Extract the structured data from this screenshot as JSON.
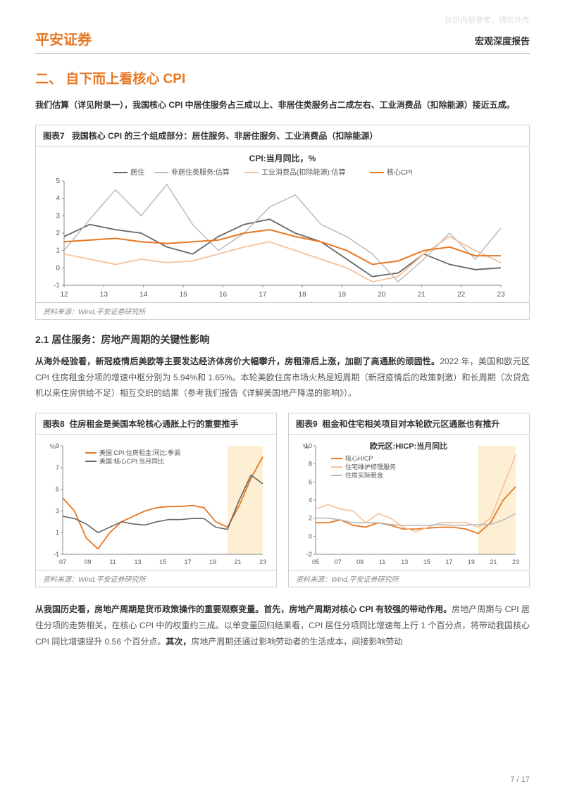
{
  "watermark": "仅供内部参考，请勿外传",
  "brand": "平安证券",
  "doc_type": "宏观深度报告",
  "section_title": "二、 自下而上看核心 CPI",
  "intro": {
    "bold1": "我们估算（详见附录一），我国核心 CPI 中居住服务占三成以上、非居住类服务占二成左右、工业消费品（扣除能源）接近五成。"
  },
  "chart7": {
    "label": "图表7",
    "title": "我国核心 CPI 的三个组成部分：居住服务、非居住服务、工业消费品（扣除能源）",
    "inner_title": "CPI:当月同比，%",
    "source": "资料来源：Wind,平安证券研究所",
    "legend": [
      "居住",
      "非居住类服务:估算",
      "工业消费品(扣除能源):估算",
      "核心CPI"
    ],
    "colors": {
      "housing": "#666666",
      "non_housing_svc": "#bbbbbb",
      "industrial": "#f5c19a",
      "core_cpi": "#e87722",
      "grid": "#e0e0e0",
      "axis": "#888888",
      "text": "#555555",
      "bg": "#ffffff"
    },
    "ymin": -1,
    "ymax": 5,
    "ytick_step": 1,
    "x_labels": [
      "12",
      "13",
      "14",
      "15",
      "16",
      "17",
      "18",
      "19",
      "20",
      "21",
      "22",
      "23"
    ],
    "housing": [
      1.8,
      2.5,
      2.2,
      2.0,
      1.2,
      0.8,
      1.8,
      2.5,
      2.8,
      2.0,
      1.5,
      0.5,
      -0.5,
      -0.3,
      0.8,
      0.2,
      -0.1,
      0.0
    ],
    "non_housing": [
      1.0,
      2.8,
      4.5,
      3.0,
      4.8,
      2.5,
      1.0,
      2.0,
      3.5,
      4.2,
      2.5,
      1.8,
      0.8,
      -0.8,
      0.5,
      2.0,
      0.5,
      2.3
    ],
    "industrial": [
      0.8,
      0.5,
      0.2,
      0.5,
      0.3,
      0.4,
      0.8,
      1.2,
      1.5,
      1.0,
      0.5,
      0.0,
      -0.8,
      -0.5,
      0.8,
      1.8,
      1.0,
      0.3
    ],
    "core_cpi": [
      1.5,
      1.6,
      1.7,
      1.5,
      1.4,
      1.5,
      1.6,
      2.0,
      2.2,
      1.8,
      1.5,
      1.0,
      0.2,
      0.4,
      1.0,
      1.2,
      0.7,
      0.7
    ],
    "n_points": 18,
    "label_fontsize": 10
  },
  "subsection_2_1": "2.1 居住服务：房地产周期的关键性影响",
  "para_2_1": {
    "bold": "从海外经验看，新冠疫情后美欧等主要发达经济体房价大幅攀升，房租滞后上涨，加剧了高通胀的顽固性。",
    "rest": "2022 年，美国和欧元区 CPI 住房租金分项的增速中枢分别为 5.94%和 1.65%。本轮美欧住房市场火热是短周期（新冠疫情后的政策刺激）和长周期（次贷危机以来住房供给不足）相互交织的结果（参考我们报告《详解美国地产降温的影响》）。"
  },
  "chart8": {
    "label": "图表8",
    "title": "住房租金是美国本轮核心通胀上行的重要推手",
    "source": "资料来源：Wind,平安证券研究所",
    "legend": [
      "美国:CPI:住房租金:同比:季调",
      "美国:核心CPI:当月同比"
    ],
    "ylabel": "%",
    "colors": {
      "rent": "#e87722",
      "core": "#666666",
      "hl": "#fcefd4",
      "grid": "#e0e0e0",
      "axis": "#888888"
    },
    "ymin": -1,
    "ymax": 9,
    "ytick_step": 2,
    "x_labels": [
      "07",
      "09",
      "11",
      "13",
      "15",
      "17",
      "19",
      "21",
      "23"
    ],
    "rent": [
      4.2,
      3.0,
      0.5,
      -0.5,
      1.0,
      2.0,
      2.5,
      3.0,
      3.3,
      3.4,
      3.4,
      3.5,
      3.3,
      2.0,
      1.5,
      3.5,
      6.0,
      8.0
    ],
    "core": [
      2.5,
      2.3,
      1.8,
      1.0,
      1.5,
      2.0,
      1.8,
      1.7,
      2.0,
      2.2,
      2.2,
      2.3,
      2.3,
      1.5,
      1.3,
      4.0,
      6.3,
      5.5
    ],
    "n_points": 18,
    "hl_start": 14,
    "hl_end": 18
  },
  "chart9": {
    "label": "图表9",
    "title": "租金和住宅相关项目对本轮欧元区通胀也有推升",
    "inner_title": "欧元区:HICP:当月同比",
    "source": "资料来源：Wind,平安证券研究所",
    "legend": [
      "核心HICP",
      "住宅维护修理服务",
      "住房实际租金"
    ],
    "ylabel": "%",
    "colors": {
      "core_hicp": "#e87722",
      "maint": "#f5c19a",
      "rent": "#bbbbbb",
      "hl": "#fcefd4",
      "grid": "#e0e0e0",
      "axis": "#888888"
    },
    "ymin": -2,
    "ymax": 10,
    "ytick_step": 2,
    "x_labels": [
      "05",
      "07",
      "09",
      "11",
      "13",
      "15",
      "17",
      "19",
      "21",
      "23"
    ],
    "core_hicp": [
      1.5,
      1.5,
      1.8,
      1.2,
      1.0,
      1.5,
      1.2,
      0.8,
      0.8,
      0.9,
      1.0,
      1.0,
      0.8,
      0.3,
      1.5,
      4.0,
      5.5
    ],
    "maint": [
      3.0,
      3.5,
      3.0,
      2.8,
      1.5,
      2.5,
      2.0,
      1.0,
      0.5,
      1.0,
      1.5,
      1.5,
      1.5,
      1.0,
      2.0,
      5.5,
      9.0
    ],
    "rent": [
      2.0,
      2.0,
      1.8,
      1.5,
      1.5,
      1.5,
      1.3,
      1.2,
      1.2,
      1.2,
      1.3,
      1.2,
      1.2,
      1.3,
      1.3,
      1.8,
      2.5
    ],
    "n_points": 17,
    "hl_start": 13,
    "hl_end": 17
  },
  "para_final": {
    "bold1": "从我国历史看，房地产周期是货币政策操作的重要观察变量。首先，房地产周期对核心 CPI 有较强的带动作用。",
    "mid": "房地产周期与 CPI 居住分项的走势相关，在核心 CPI 中的权重约三成。以单变量回归结果看，CPI 居住分项同比增速每上行 1 个百分点，将带动我国核心 CPI 同比增速提升 0.56 个百分点。",
    "bold2": "其次，",
    "rest2": "房地产周期还通过影响劳动者的生活成本，间接影响劳动"
  },
  "page": "7 / 17"
}
